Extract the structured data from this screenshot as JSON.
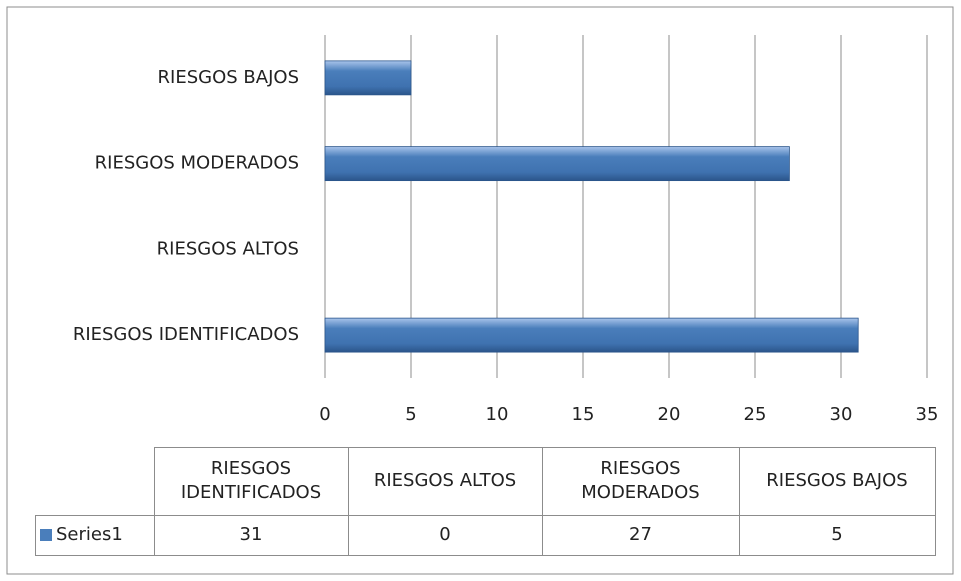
{
  "chart_data": {
    "type": "bar",
    "orientation": "horizontal",
    "categories": [
      "RIESGOS IDENTIFICADOS",
      "RIESGOS ALTOS",
      "RIESGOS MODERADOS",
      "RIESGOS BAJOS"
    ],
    "series": [
      {
        "name": "Series1",
        "color": "#4a7ebb",
        "values": [
          31,
          0,
          27,
          5
        ]
      }
    ],
    "xlim": [
      0,
      35
    ],
    "xticks": [
      0,
      5,
      10,
      15,
      20,
      25,
      30,
      35
    ],
    "grid": true,
    "data_table": true
  }
}
